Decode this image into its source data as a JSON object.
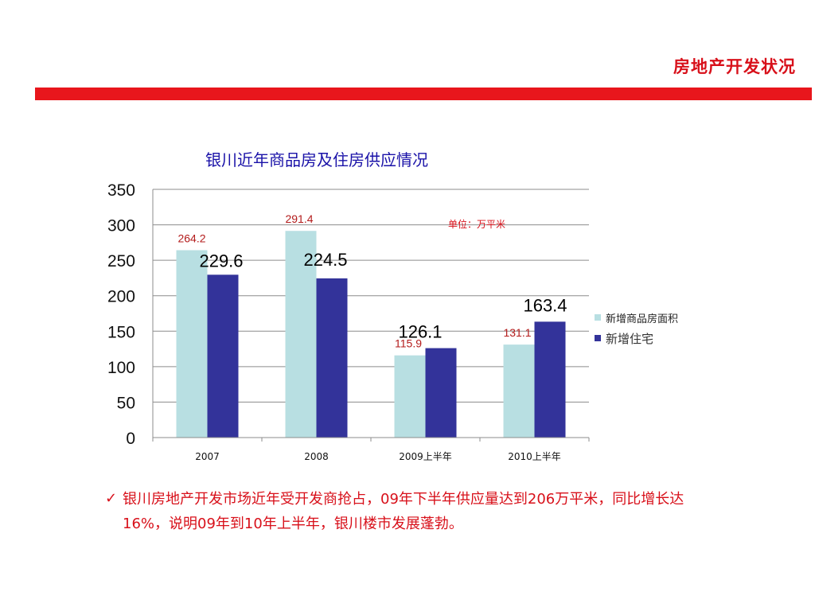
{
  "header": {
    "title": "房地产开发状况"
  },
  "chart_data": {
    "type": "bar",
    "title": "银川近年商品房及住房供应情况",
    "unit_note": "单位：万平米",
    "categories": [
      "2007",
      "2008",
      "2009上半年",
      "2010上半年"
    ],
    "series": [
      {
        "name": "新增商品房面积",
        "values": [
          264.2,
          291.4,
          115.9,
          131.1
        ],
        "color": "#b8dfe2",
        "label_color": "#b31b1b"
      },
      {
        "name": "新增住宅",
        "values": [
          229.6,
          224.5,
          126.1,
          163.4
        ],
        "color": "#33339a",
        "label_color": "#000000"
      }
    ],
    "ylim": [
      0,
      350
    ],
    "yticks": [
      "0",
      "50",
      "100",
      "150",
      "200",
      "250",
      "300",
      "350"
    ],
    "grid": true,
    "legend": "right",
    "xlabel": "",
    "ylabel": ""
  },
  "conclusion": {
    "check": "✓",
    "text": "银川房地产开发市场近年受开发商抢占，09年下半年供应量达到206万平米，同比增长达16%，说明09年到10年上半年，银川楼市发展蓬勃。"
  },
  "colors": {
    "accent": "#e8161c",
    "title_blue": "#1a12a8"
  }
}
